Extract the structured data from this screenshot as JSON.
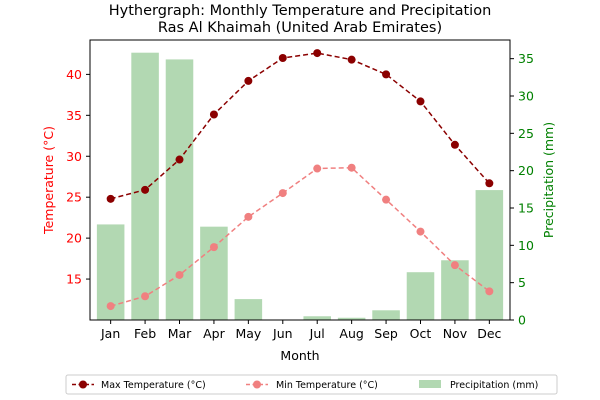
{
  "chart_data": {
    "type": "bar+line",
    "title": "Hythergraph: Monthly Temperature and Precipitation",
    "subtitle": "Ras Al Khaimah (United Arab Emirates)",
    "xlabel": "Month",
    "ylabel_left": "Temperature (°C)",
    "ylabel_right": "Precipitation (mm)",
    "categories": [
      "Jan",
      "Feb",
      "Mar",
      "Apr",
      "May",
      "Jun",
      "Jul",
      "Aug",
      "Sep",
      "Oct",
      "Nov",
      "Dec"
    ],
    "ylim_left": [
      10,
      44.2
    ],
    "yticks_left": [
      15,
      20,
      25,
      30,
      35,
      40
    ],
    "ylim_right": [
      0,
      37.5
    ],
    "yticks_right": [
      0,
      5,
      10,
      15,
      20,
      25,
      30,
      35
    ],
    "series": [
      {
        "name": "Max Temperature (°C)",
        "axis": "left",
        "kind": "line",
        "color": "#8b0000",
        "values": [
          24.8,
          25.9,
          29.6,
          35.1,
          39.2,
          42.0,
          42.6,
          41.8,
          40.0,
          36.7,
          31.4,
          26.7
        ]
      },
      {
        "name": "Min Temperature (°C)",
        "axis": "left",
        "kind": "line",
        "color": "#f08080",
        "values": [
          11.7,
          12.9,
          15.5,
          18.9,
          22.6,
          25.5,
          28.5,
          28.6,
          24.7,
          20.8,
          16.7,
          13.5
        ]
      },
      {
        "name": "Precipitation (mm)",
        "axis": "right",
        "kind": "bar",
        "color": "#b2d8b2",
        "values": [
          12.8,
          35.8,
          34.9,
          12.5,
          2.8,
          0.0,
          0.5,
          0.3,
          1.3,
          6.4,
          8.0,
          17.4
        ]
      }
    ],
    "grid": false,
    "legend_position": "bottom-center"
  }
}
